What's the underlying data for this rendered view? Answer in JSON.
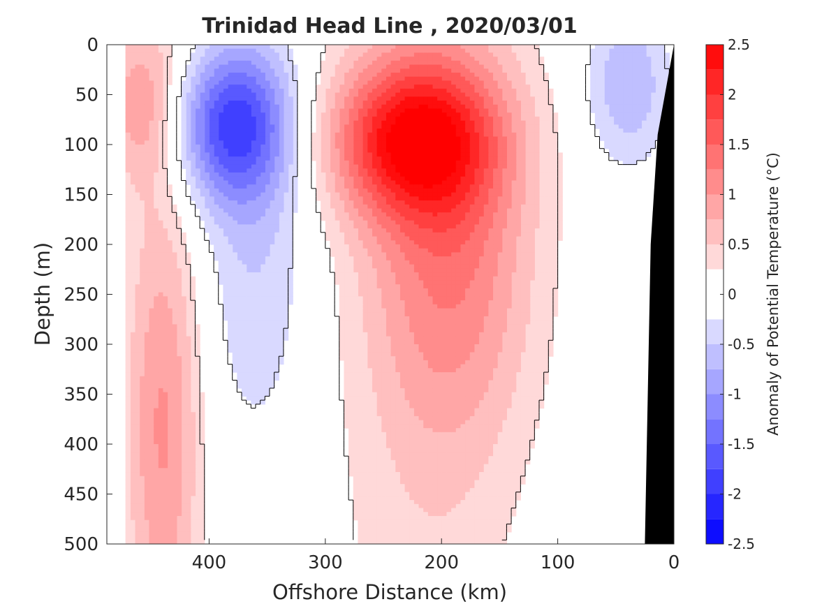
{
  "chart_data": {
    "type": "heatmap",
    "title": "Trinidad Head Line , 2020/03/01",
    "xlabel": "Offshore Distance (km)",
    "ylabel": "Depth (m)",
    "x_axis_reversed": true,
    "y_axis_reversed": true,
    "xlim": [
      0,
      488
    ],
    "ylim": [
      0,
      500
    ],
    "xticks": [
      "400",
      "300",
      "200",
      "100",
      "0"
    ],
    "xtick_values": [
      400,
      300,
      200,
      100,
      0
    ],
    "yticks": [
      "0",
      "50",
      "100",
      "150",
      "200",
      "250",
      "300",
      "350",
      "400",
      "450",
      "500"
    ],
    "ytick_values": [
      0,
      50,
      100,
      150,
      200,
      250,
      300,
      350,
      400,
      450,
      500
    ],
    "colorbar": {
      "label": "Anomaly of Potential Temperature (°C)",
      "ticks": [
        "2.5",
        "2",
        "1.5",
        "1",
        "0.5",
        "0",
        "-0.5",
        "-1",
        "-1.5",
        "-2",
        "-2.5"
      ],
      "tick_values": [
        2.5,
        2,
        1.5,
        1,
        0.5,
        0,
        -0.5,
        -1,
        -1.5,
        -2,
        -2.5
      ],
      "range": [
        -2.5,
        2.5
      ],
      "levels": [
        -2.5,
        -2.25,
        -2.0,
        -1.75,
        -1.5,
        -1.25,
        -1.0,
        -0.75,
        -0.5,
        -0.25,
        0.25,
        0.5,
        0.75,
        1.0,
        1.25,
        1.5,
        1.75,
        2.0,
        2.25,
        2.5
      ],
      "neutral_band": [
        -0.25,
        0.25
      ],
      "colormap": "blue-white-red"
    },
    "data_extent_km": [
      0,
      470
    ],
    "anomaly_features": [
      {
        "sign": "positive",
        "x": 225,
        "depth": 95,
        "max": 2.0
      },
      {
        "sign": "positive",
        "x": 190,
        "depth": 205,
        "max": 1.0
      },
      {
        "sign": "positive",
        "x": 460,
        "depth": 60,
        "max": 0.75
      },
      {
        "sign": "positive",
        "x": 440,
        "depth": 380,
        "max": 0.75
      },
      {
        "sign": "negative",
        "x": 380,
        "depth": 80,
        "min": -1.75
      },
      {
        "sign": "negative",
        "x": 40,
        "depth": 40,
        "min": -0.75
      },
      {
        "sign": "negative",
        "x": 360,
        "depth": 210,
        "min": -0.5
      }
    ],
    "shelf": {
      "color": "#000000",
      "profile": [
        [
          0,
          0
        ],
        [
          14,
          90
        ],
        [
          20,
          200
        ],
        [
          25,
          500
        ]
      ]
    }
  }
}
